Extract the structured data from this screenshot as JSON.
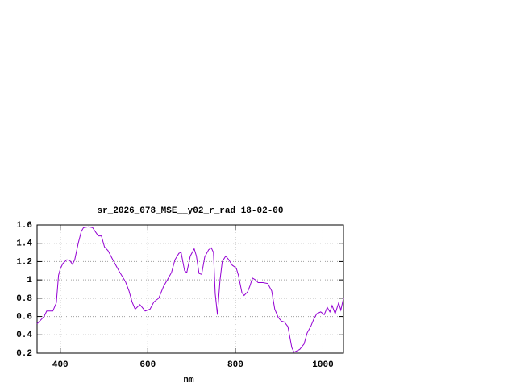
{
  "chart_data": {
    "type": "line",
    "title": "sr_2026_078_MSE__y02_r_rad 18-02-00",
    "x_label": "nm",
    "x": [
      347,
      363,
      369,
      383,
      391,
      396,
      400,
      406,
      415,
      422,
      428,
      433,
      441,
      448,
      453,
      465,
      474,
      481,
      487,
      494,
      501,
      509,
      520,
      535,
      549,
      557,
      564,
      571,
      582,
      594,
      605,
      614,
      625,
      636,
      647,
      654,
      662,
      671,
      676,
      684,
      689,
      697,
      706,
      711,
      717,
      723,
      730,
      739,
      745,
      750,
      754,
      759,
      765,
      770,
      778,
      785,
      793,
      802,
      807,
      815,
      820,
      828,
      833,
      839,
      846,
      852,
      863,
      874,
      883,
      890,
      898,
      905,
      912,
      920,
      929,
      934,
      947,
      957,
      964,
      973,
      979,
      986,
      995,
      1003,
      1010,
      1016,
      1021,
      1028,
      1036,
      1041,
      1047
    ],
    "values": [
      0.52,
      0.6,
      0.66,
      0.66,
      0.75,
      1.05,
      1.12,
      1.18,
      1.22,
      1.21,
      1.17,
      1.22,
      1.4,
      1.53,
      1.57,
      1.58,
      1.57,
      1.52,
      1.48,
      1.48,
      1.36,
      1.32,
      1.22,
      1.09,
      0.98,
      0.88,
      0.76,
      0.68,
      0.73,
      0.66,
      0.68,
      0.76,
      0.8,
      0.93,
      1.02,
      1.08,
      1.22,
      1.29,
      1.3,
      1.1,
      1.08,
      1.26,
      1.34,
      1.26,
      1.07,
      1.06,
      1.25,
      1.33,
      1.35,
      1.3,
      0.85,
      0.62,
      1.0,
      1.2,
      1.26,
      1.22,
      1.16,
      1.13,
      1.05,
      0.86,
      0.83,
      0.87,
      0.93,
      1.02,
      1.0,
      0.97,
      0.97,
      0.96,
      0.88,
      0.68,
      0.59,
      0.55,
      0.54,
      0.49,
      0.26,
      0.21,
      0.24,
      0.3,
      0.42,
      0.5,
      0.57,
      0.63,
      0.65,
      0.62,
      0.7,
      0.65,
      0.72,
      0.63,
      0.75,
      0.67,
      0.8
    ],
    "color": "#9400d3",
    "xlim": [
      347,
      1047
    ],
    "xticks": [
      400,
      600,
      800,
      1000
    ],
    "ylim": [
      0.2,
      1.6
    ],
    "yticks": [
      0.2,
      0.4,
      0.6,
      0.8,
      1,
      1.2,
      1.4,
      1.6
    ],
    "grid": true
  }
}
